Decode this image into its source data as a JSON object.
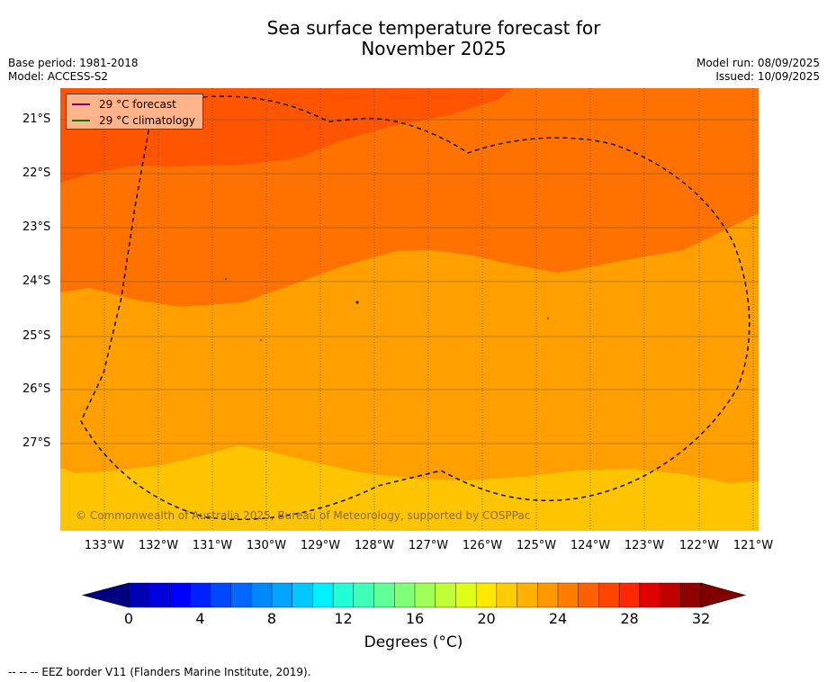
{
  "title": {
    "line1": "Sea surface temperature forecast for",
    "line2": "November 2025"
  },
  "meta": {
    "base_period": "Base period: 1981-2018",
    "model": "Model: ACCESS-S2",
    "model_run": "Model run: 08/09/2025",
    "issued": "Issued: 10/09/2025"
  },
  "map": {
    "lat_labels": [
      "21°S",
      "22°S",
      "23°S",
      "24°S",
      "25°S",
      "26°S",
      "27°S"
    ],
    "lon_labels": [
      "133°W",
      "132°W",
      "131°W",
      "130°W",
      "129°W",
      "128°W",
      "127°W",
      "126°W",
      "125°W",
      "124°W",
      "123°W",
      "122°W",
      "121°W"
    ],
    "region_colors": [
      "#ff5500",
      "#ff7200",
      "#ffa000",
      "#ffc400"
    ]
  },
  "legend": {
    "forecast_label": "29 °C  forecast",
    "forecast_color": "#800080",
    "climatology_label": "29 °C  climatology",
    "climatology_color": "#008000"
  },
  "copyright": "© Commonwealth of Australia 2025, Bureau of Meteorology, supported by COSPPac",
  "colorbar": {
    "ticks": [
      "0",
      "4",
      "8",
      "12",
      "16",
      "20",
      "24",
      "28",
      "32"
    ],
    "label": "Degrees (°C)",
    "colors": [
      "#000080",
      "#0000b4",
      "#0000dc",
      "#0000ff",
      "#0020ff",
      "#0048ff",
      "#0068ff",
      "#0088ff",
      "#00a4ff",
      "#00c8ff",
      "#00f0ff",
      "#20ffd8",
      "#40ffb8",
      "#60ff98",
      "#80ff78",
      "#a0ff58",
      "#c0ff38",
      "#e0ff18",
      "#ffe800",
      "#ffcc00",
      "#ffb000",
      "#ff9800",
      "#ff7c00",
      "#ff6000",
      "#ff4400",
      "#ff2800",
      "#e00000",
      "#c00000",
      "#900000",
      "#800000"
    ]
  },
  "footer": "--  --  -- EEZ border V11 (Flanders Marine Institute, 2019)."
}
